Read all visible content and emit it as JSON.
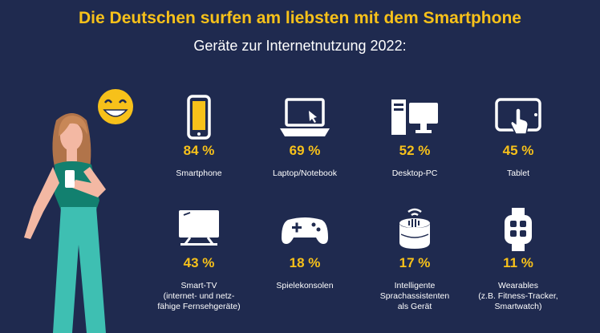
{
  "title": "Die Deutschen surfen am liebsten mit dem Smartphone",
  "subtitle": "Geräte zur Internetnutzung 2022:",
  "colors": {
    "background": "#1f2a4f",
    "accent": "#f7c11a",
    "text": "#ffffff"
  },
  "chart_data": {
    "type": "bar",
    "title": "Die Deutschen surfen am liebsten mit dem Smartphone",
    "subtitle": "Geräte zur Internetnutzung 2022:",
    "unit": "%",
    "categories": [
      "Smartphone",
      "Laptop/Notebook",
      "Desktop-PC",
      "Tablet",
      "Smart-TV (internet- und netz-fähige Fernsehgeräte)",
      "Spielekonsolen",
      "Intelligente Sprachassistenten als Gerät",
      "Wearables (z.B. Fitness-Tracker, Smartwatch)"
    ],
    "values": [
      84,
      69,
      52,
      45,
      43,
      18,
      17,
      11
    ],
    "items": [
      {
        "icon": "smartphone-icon",
        "value": 84,
        "value_label": "84 %",
        "label": "Smartphone"
      },
      {
        "icon": "laptop-icon",
        "value": 69,
        "value_label": "69 %",
        "label": "Laptop/Notebook"
      },
      {
        "icon": "desktop-pc-icon",
        "value": 52,
        "value_label": "52 %",
        "label": "Desktop-PC"
      },
      {
        "icon": "tablet-icon",
        "value": 45,
        "value_label": "45 %",
        "label": "Tablet"
      },
      {
        "icon": "smart-tv-icon",
        "value": 43,
        "value_label": "43 %",
        "label": "Smart-TV\n(internet- und netz-\nfähige Fernsehgeräte)"
      },
      {
        "icon": "gamepad-icon",
        "value": 18,
        "value_label": "18 %",
        "label": "Spielekonsolen"
      },
      {
        "icon": "smart-speaker-icon",
        "value": 17,
        "value_label": "17 %",
        "label": "Intelligente\nSprachassistenten\nals Gerät"
      },
      {
        "icon": "smartwatch-icon",
        "value": 11,
        "value_label": "11 %",
        "label": "Wearables\n(z.B. Fitness-Tracker,\nSmartwatch)"
      }
    ]
  }
}
